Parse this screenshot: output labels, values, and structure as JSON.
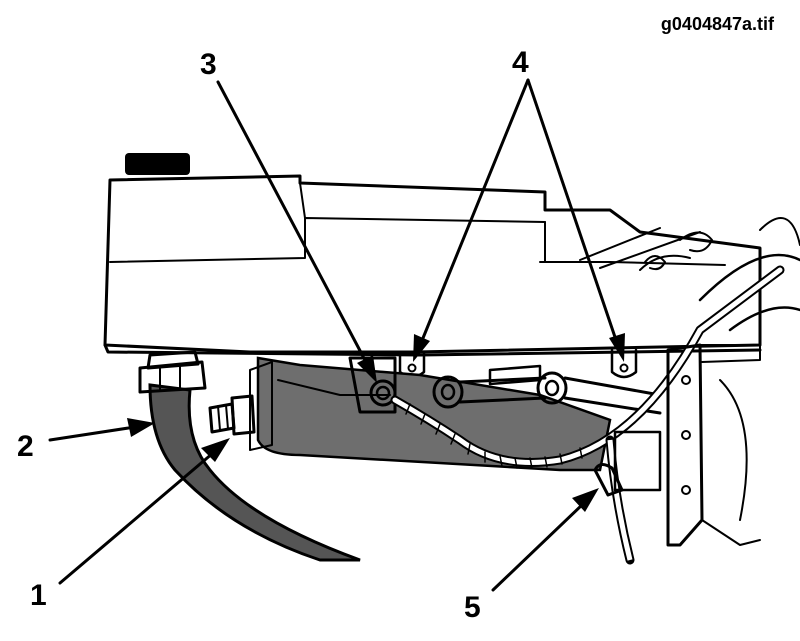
{
  "figure_id": "g0404847a.tif",
  "callouts": {
    "c1": "1",
    "c2": "2",
    "c3": "3",
    "c4": "4",
    "c5": "5"
  },
  "colors": {
    "ink": "#000000",
    "hose": "#555555",
    "bracket_shade": "#6e6e6e",
    "panel": "#ffffff"
  }
}
